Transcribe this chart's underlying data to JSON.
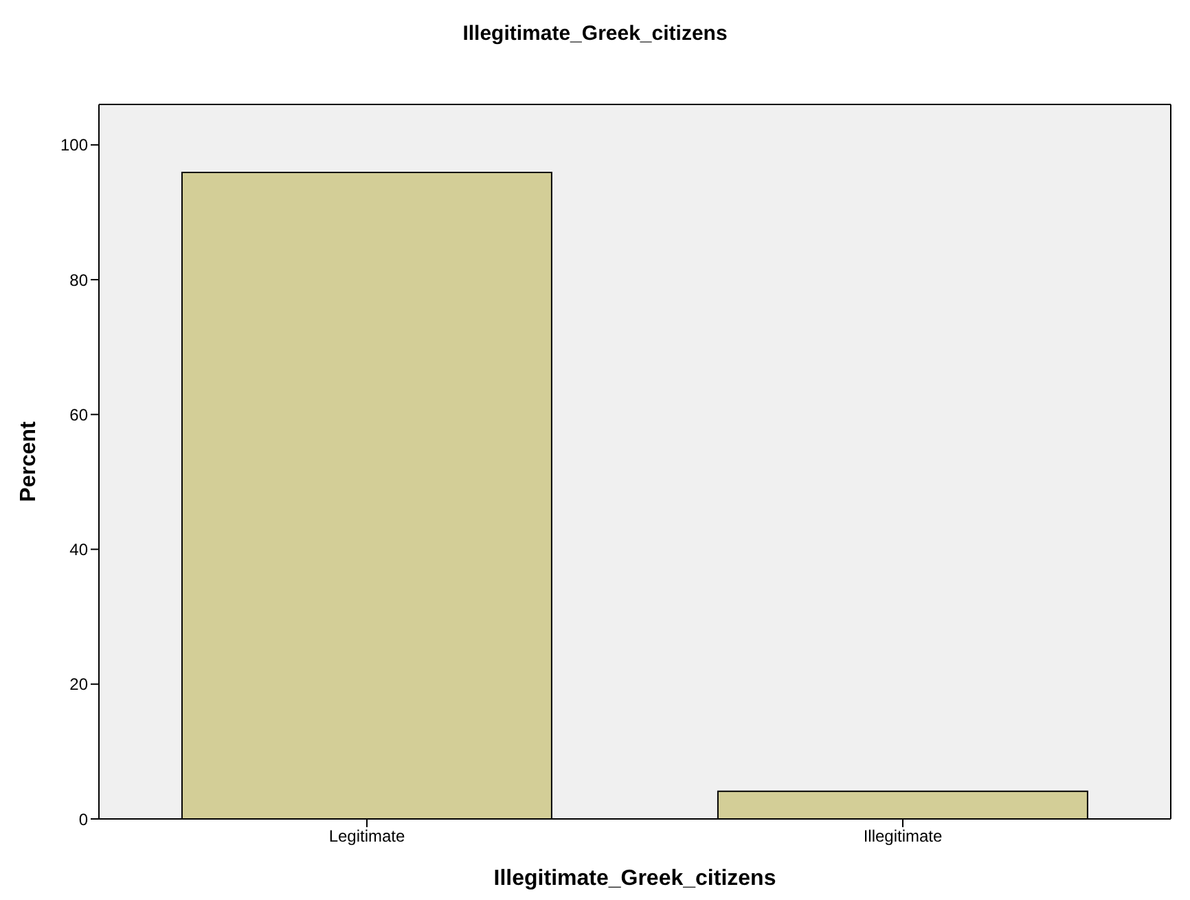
{
  "chart_data": {
    "type": "bar",
    "title": "Illegitimate_Greek_citizens",
    "xlabel": "Illegitimate_Greek_citizens",
    "ylabel": "Percent",
    "categories": [
      "Legitimate",
      "Illegitimate"
    ],
    "values": [
      95.9,
      4.1
    ],
    "color": "#d3ce97",
    "ylim": [
      0,
      106
    ],
    "yticks": [
      0,
      20,
      40,
      60,
      80,
      100
    ],
    "grid": false
  }
}
